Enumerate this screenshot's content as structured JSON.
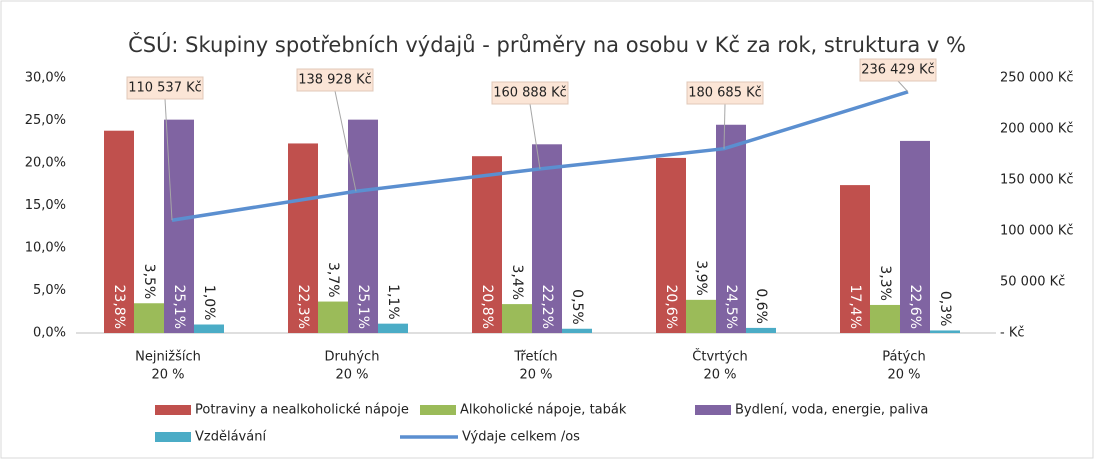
{
  "chart_data": {
    "type": "bar",
    "title": "ČSÚ: Skupiny spotřebních výdajů - průměry na osobu v Kč za rok, struktura v %",
    "categories": [
      [
        "Nejnižších",
        "20 %"
      ],
      [
        "Druhých",
        "20 %"
      ],
      [
        "Třetích",
        "20 %"
      ],
      [
        "Čtvrtých",
        "20 %"
      ],
      [
        "Pátých",
        "20 %"
      ]
    ],
    "series": [
      {
        "name": "Potraviny a nealkoholické nápoje",
        "color": "#c0504d",
        "values": [
          23.8,
          22.3,
          20.8,
          20.6,
          17.4
        ],
        "value_labels": [
          "23,8%",
          "22,3%",
          "20,8%",
          "20,6%",
          "17,4%"
        ]
      },
      {
        "name": "Alkoholické nápoje, tabák",
        "color": "#9bbb59",
        "values": [
          3.5,
          3.7,
          3.4,
          3.9,
          3.3
        ],
        "value_labels": [
          "3,5%",
          "3,7%",
          "3,4%",
          "3,9%",
          "3,3%"
        ]
      },
      {
        "name": "Bydlení, voda, energie, paliva",
        "color": "#8064a2",
        "values": [
          25.1,
          25.1,
          22.2,
          24.5,
          22.6
        ],
        "value_labels": [
          "25,1%",
          "25,1%",
          "22,2%",
          "24,5%",
          "22,6%"
        ]
      },
      {
        "name": "Vzdělávání",
        "color": "#4bacc6",
        "values": [
          1.0,
          1.1,
          0.5,
          0.6,
          0.3
        ],
        "value_labels": [
          "1,0%",
          "1,1%",
          "0,5%",
          "0,6%",
          "0,3%"
        ]
      },
      {
        "name": "Výdaje celkem /os",
        "color": "#5b8fd0",
        "type": "line",
        "axis": "y2",
        "values": [
          110537,
          138928,
          160888,
          180685,
          236429
        ],
        "value_labels": [
          "110 537 Kč",
          "138 928 Kč",
          "160 888 Kč",
          "180 685 Kč",
          "236 429 Kč"
        ]
      }
    ],
    "ylim": [
      0,
      30
    ],
    "yticks": [
      {
        "value": 0,
        "label": "0,0%"
      },
      {
        "value": 5,
        "label": "5,0%"
      },
      {
        "value": 10,
        "label": "10,0%"
      },
      {
        "value": 15,
        "label": "15,0%"
      },
      {
        "value": 20,
        "label": "20,0%"
      },
      {
        "value": 25,
        "label": "25,0%"
      },
      {
        "value": 30,
        "label": "30,0%"
      }
    ],
    "y2lim": [
      0,
      250000
    ],
    "y2ticks": [
      {
        "value": 0,
        "label": "-  Kč"
      },
      {
        "value": 50000,
        "label": "50 000 Kč"
      },
      {
        "value": 100000,
        "label": "100 000 Kč"
      },
      {
        "value": 150000,
        "label": "150 000 Kč"
      },
      {
        "value": 200000,
        "label": "200 000 Kč"
      },
      {
        "value": 250000,
        "label": "250 000 Kč"
      }
    ],
    "grid": false,
    "legend": "bottom"
  }
}
